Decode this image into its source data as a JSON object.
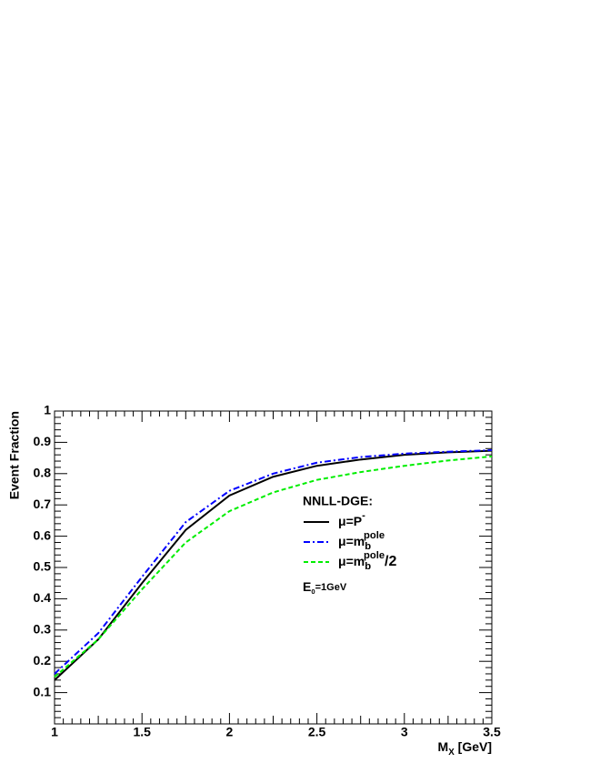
{
  "chart_data": {
    "type": "line",
    "y_label": "Event Fraction",
    "x_label": {
      "text": "M",
      "sub": "X",
      "tail": " [GeV]"
    },
    "legend_title": "NNLL-DGE:",
    "annotation": {
      "text": "E",
      "sub": "0",
      "tail": "=1GeV"
    },
    "x": [
      1,
      1.25,
      1.5,
      1.75,
      2,
      2.25,
      2.5,
      2.75,
      3,
      3.25,
      3.5
    ],
    "series": [
      {
        "name": "μ=P",
        "name_sup": "-",
        "color": "#000000",
        "dash": "solid",
        "values": [
          0.14,
          0.27,
          0.45,
          0.62,
          0.73,
          0.79,
          0.825,
          0.845,
          0.86,
          0.868,
          0.873
        ]
      },
      {
        "name": "μ=m",
        "name_sub": "b",
        "name_sup": "pole",
        "color": "#0000ff",
        "dash": "dashdot",
        "values": [
          0.16,
          0.29,
          0.47,
          0.645,
          0.745,
          0.8,
          0.835,
          0.853,
          0.864,
          0.87,
          0.875
        ]
      },
      {
        "name": "μ=m",
        "name_sub": "b",
        "name_sup": "pole",
        "name_tail": "/2",
        "color": "#00ee00",
        "dash": "dashed",
        "values": [
          0.15,
          0.27,
          0.43,
          0.58,
          0.68,
          0.74,
          0.78,
          0.805,
          0.825,
          0.842,
          0.855
        ]
      }
    ],
    "xlim": [
      1,
      3.5
    ],
    "xticks": [
      1,
      1.5,
      2,
      2.5,
      3,
      3.5
    ],
    "ylim": [
      0,
      1
    ],
    "yticks": [
      0.1,
      0.2,
      0.3,
      0.4,
      0.5,
      0.6,
      0.7,
      0.8,
      0.9,
      1
    ],
    "grid": false
  }
}
